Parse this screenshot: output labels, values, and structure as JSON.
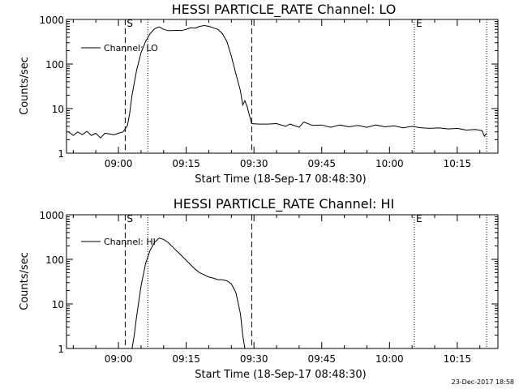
{
  "footer": {
    "stamp": "23-Dec-2017 18:58"
  },
  "chart_data": [
    {
      "type": "line",
      "title": "HESSI PARTICLE_RATE Channel: LO",
      "xlabel": "Start Time (18-Sep-17 08:48:30)",
      "ylabel": "Counts/sec",
      "xlim": [
        "08:48:30",
        "10:24:00"
      ],
      "ylim": [
        1,
        1000
      ],
      "yscale": "log",
      "x_ticks": [
        "09:00",
        "09:15",
        "09:30",
        "09:45",
        "10:00",
        "10:15"
      ],
      "y_ticks": [
        "1",
        "10",
        "100",
        "1000"
      ],
      "legend": {
        "position": "top-left",
        "entries": [
          "Channel: LO"
        ]
      },
      "markers": [
        {
          "label": "S",
          "time": "09:01:30",
          "style": "dashed"
        },
        {
          "label": "",
          "time": "09:06:30",
          "style": "dotted"
        },
        {
          "label": "",
          "time": "09:29:30",
          "style": "dashed"
        },
        {
          "label": "E",
          "time": "10:05:30",
          "style": "dotted"
        },
        {
          "label": "",
          "time": "10:21:30",
          "style": "dotted"
        }
      ],
      "series": [
        {
          "name": "Channel: LO",
          "points": [
            [
              "08:49:00",
              3.0
            ],
            [
              "08:50:00",
              2.5
            ],
            [
              "08:51:00",
              3.0
            ],
            [
              "08:52:00",
              2.6
            ],
            [
              "08:53:00",
              3.1
            ],
            [
              "08:54:00",
              2.5
            ],
            [
              "08:55:00",
              2.8
            ],
            [
              "08:56:00",
              2.2
            ],
            [
              "08:57:00",
              2.8
            ],
            [
              "08:58:00",
              2.7
            ],
            [
              "08:59:00",
              2.6
            ],
            [
              "09:00:00",
              2.8
            ],
            [
              "09:01:00",
              3.0
            ],
            [
              "09:01:30",
              3.5
            ],
            [
              "09:02:00",
              4.2
            ],
            [
              "09:02:30",
              8
            ],
            [
              "09:03:00",
              20
            ],
            [
              "09:04:00",
              70
            ],
            [
              "09:05:00",
              180
            ],
            [
              "09:06:00",
              320
            ],
            [
              "09:07:00",
              480
            ],
            [
              "09:08:00",
              620
            ],
            [
              "09:09:00",
              680
            ],
            [
              "09:10:00",
              600
            ],
            [
              "09:11:00",
              560
            ],
            [
              "09:12:00",
              560
            ],
            [
              "09:13:00",
              570
            ],
            [
              "09:14:00",
              560
            ],
            [
              "09:15:00",
              600
            ],
            [
              "09:16:00",
              650
            ],
            [
              "09:17:00",
              640
            ],
            [
              "09:18:00",
              700
            ],
            [
              "09:19:00",
              730
            ],
            [
              "09:20:00",
              700
            ],
            [
              "09:21:00",
              650
            ],
            [
              "09:22:00",
              600
            ],
            [
              "09:23:00",
              480
            ],
            [
              "09:24:00",
              320
            ],
            [
              "09:25:00",
              150
            ],
            [
              "09:26:00",
              60
            ],
            [
              "09:27:00",
              25
            ],
            [
              "09:27:30",
              12
            ],
            [
              "09:28:00",
              15
            ],
            [
              "09:28:30",
              11
            ],
            [
              "09:29:00",
              7
            ],
            [
              "09:29:30",
              4.6
            ],
            [
              "09:31:00",
              4.5
            ],
            [
              "09:33:00",
              4.5
            ],
            [
              "09:35:00",
              4.6
            ],
            [
              "09:37:00",
              4.0
            ],
            [
              "09:38:00",
              4.5
            ],
            [
              "09:40:00",
              3.8
            ],
            [
              "09:41:00",
              5.0
            ],
            [
              "09:43:00",
              4.2
            ],
            [
              "09:45:00",
              4.3
            ],
            [
              "09:47:00",
              3.8
            ],
            [
              "09:49:00",
              4.3
            ],
            [
              "09:51:00",
              3.9
            ],
            [
              "09:53:00",
              4.2
            ],
            [
              "09:55:00",
              3.8
            ],
            [
              "09:57:00",
              4.3
            ],
            [
              "09:59:00",
              3.9
            ],
            [
              "10:01:00",
              4.1
            ],
            [
              "10:03:00",
              3.7
            ],
            [
              "10:05:00",
              4.0
            ],
            [
              "10:07:00",
              3.7
            ],
            [
              "10:09:00",
              3.6
            ],
            [
              "10:11:00",
              3.7
            ],
            [
              "10:13:00",
              3.5
            ],
            [
              "10:15:00",
              3.6
            ],
            [
              "10:17:00",
              3.3
            ],
            [
              "10:19:00",
              3.4
            ],
            [
              "10:20:30",
              3.2
            ],
            [
              "10:21:00",
              2.4
            ],
            [
              "10:21:30",
              2.8
            ]
          ]
        }
      ]
    },
    {
      "type": "line",
      "title": "HESSI PARTICLE_RATE Channel: HI",
      "xlabel": "Start Time (18-Sep-17 08:48:30)",
      "ylabel": "Counts/sec",
      "xlim": [
        "08:48:30",
        "10:24:00"
      ],
      "ylim": [
        1,
        1000
      ],
      "yscale": "log",
      "x_ticks": [
        "09:00",
        "09:15",
        "09:30",
        "09:45",
        "10:00",
        "10:15"
      ],
      "y_ticks": [
        "1",
        "10",
        "100",
        "1000"
      ],
      "legend": {
        "position": "top-left",
        "entries": [
          "Channel: HI"
        ]
      },
      "markers": [
        {
          "label": "S",
          "time": "09:01:30",
          "style": "dashed"
        },
        {
          "label": "",
          "time": "09:06:30",
          "style": "dotted"
        },
        {
          "label": "",
          "time": "09:29:30",
          "style": "dashed"
        },
        {
          "label": "E",
          "time": "10:05:30",
          "style": "dotted"
        },
        {
          "label": "",
          "time": "10:21:30",
          "style": "dotted"
        }
      ],
      "series": [
        {
          "name": "Channel: HI",
          "points": [
            [
              "09:03:00",
              1.0
            ],
            [
              "09:03:30",
              2.0
            ],
            [
              "09:04:00",
              5
            ],
            [
              "09:05:00",
              25
            ],
            [
              "09:06:00",
              80
            ],
            [
              "09:07:00",
              160
            ],
            [
              "09:08:00",
              240
            ],
            [
              "09:09:00",
              300
            ],
            [
              "09:10:00",
              280
            ],
            [
              "09:11:00",
              240
            ],
            [
              "09:12:00",
              190
            ],
            [
              "09:13:00",
              150
            ],
            [
              "09:14:00",
              120
            ],
            [
              "09:15:00",
              95
            ],
            [
              "09:16:00",
              75
            ],
            [
              "09:17:00",
              60
            ],
            [
              "09:18:00",
              50
            ],
            [
              "09:19:00",
              45
            ],
            [
              "09:20:00",
              40
            ],
            [
              "09:21:00",
              38
            ],
            [
              "09:22:00",
              35
            ],
            [
              "09:23:00",
              35
            ],
            [
              "09:24:00",
              33
            ],
            [
              "09:25:00",
              28
            ],
            [
              "09:26:00",
              18
            ],
            [
              "09:27:00",
              6
            ],
            [
              "09:27:30",
              2
            ],
            [
              "09:28:00",
              1.0
            ]
          ]
        }
      ]
    }
  ]
}
